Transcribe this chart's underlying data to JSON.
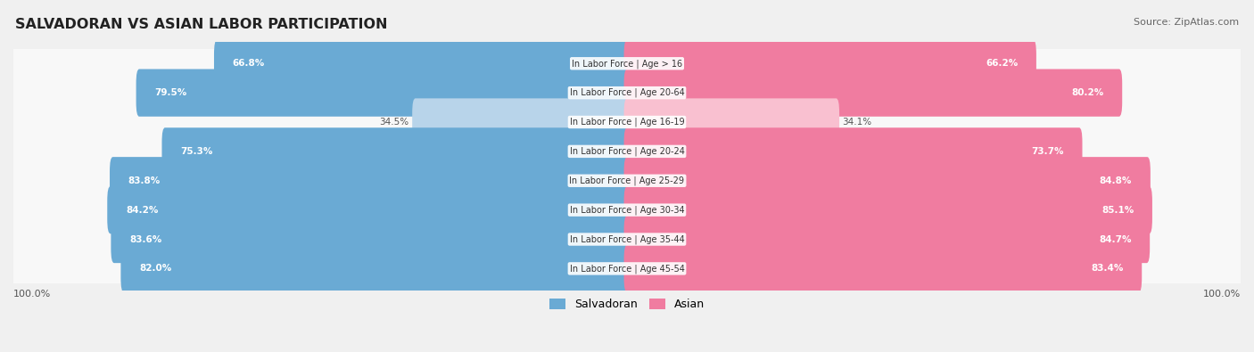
{
  "title": "SALVADORAN VS ASIAN LABOR PARTICIPATION",
  "source": "Source: ZipAtlas.com",
  "categories": [
    "In Labor Force | Age > 16",
    "In Labor Force | Age 20-64",
    "In Labor Force | Age 16-19",
    "In Labor Force | Age 20-24",
    "In Labor Force | Age 25-29",
    "In Labor Force | Age 30-34",
    "In Labor Force | Age 35-44",
    "In Labor Force | Age 45-54"
  ],
  "salvadoran_values": [
    66.8,
    79.5,
    34.5,
    75.3,
    83.8,
    84.2,
    83.6,
    82.0
  ],
  "asian_values": [
    66.2,
    80.2,
    34.1,
    73.7,
    84.8,
    85.1,
    84.7,
    83.4
  ],
  "salvadoran_color": "#6aaad4",
  "asian_color": "#f07ca0",
  "salvadoran_color_light": "#b8d4ea",
  "asian_color_light": "#f9c0d0",
  "bg_color": "#f0f0f0",
  "row_bg_even": "#e8e8e8",
  "row_bg_odd": "#dedede",
  "max_value": 100.0,
  "legend_salvadoran": "Salvadoran",
  "legend_asian": "Asian",
  "bottom_left_label": "100.0%",
  "bottom_right_label": "100.0%"
}
